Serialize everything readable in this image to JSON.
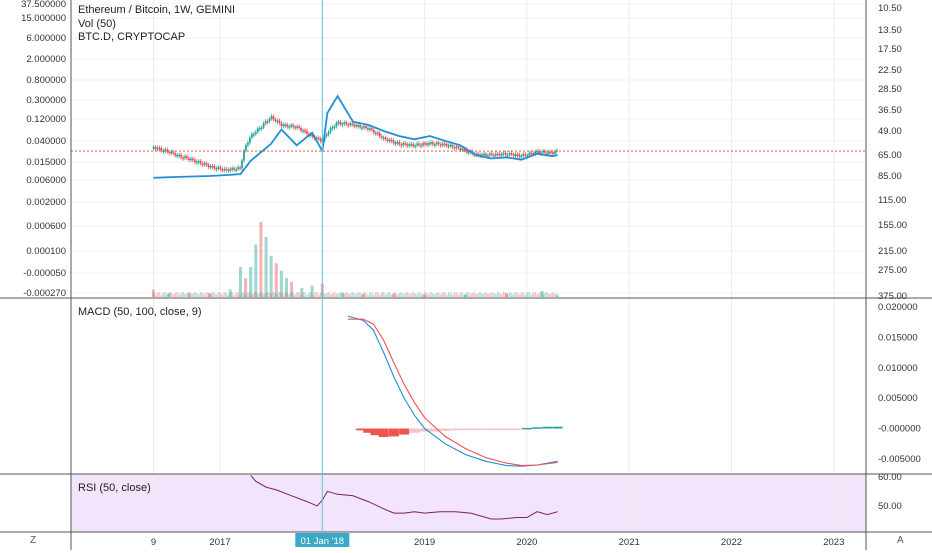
{
  "colors": {
    "accent": "#1f8fd6",
    "up": "#26a69a",
    "down": "#ef5350",
    "rsi_band": "#f1e4fb",
    "rsi_line": "#7b1f6a",
    "crosshair": "#61c7d9",
    "price_line": "#e53935",
    "date_badge": "#3aa9c6"
  },
  "legend": {
    "symbol": "Ethereum / Bitcoin, 1W, GEMINI",
    "volume": "Vol (50)",
    "overlay": "BTC.D, CRYPTOCAP"
  },
  "crosshair_date": "01 Jan '18",
  "left_corner": "Z",
  "right_corner": "A",
  "chart_data": [
    {
      "type": "line",
      "name": "price",
      "title": "Ethereum / Bitcoin, 1W, GEMINI",
      "x_ticks": [
        "9",
        "2017",
        "2018",
        "2019",
        "2020",
        "2021",
        "2022",
        "2023"
      ],
      "left_axis_ticks": [
        "37.500000",
        "15.000000",
        "6.000000",
        "2.000000",
        "0.800000",
        "0.300000",
        "0.120000",
        "0.040000",
        "0.015000",
        "0.006000",
        "0.002000",
        "0.000600",
        "0.000100",
        "-0.000050",
        "-0.000270"
      ],
      "right_axis_ticks": [
        "10.50",
        "13.50",
        "17.50",
        "22.50",
        "28.50",
        "36.50",
        "49.00",
        "65.00",
        "85.00",
        "115.00",
        "155.00",
        "215.00",
        "275.00",
        "375.00"
      ],
      "series": [
        {
          "name": "Ethereum / Bitcoin",
          "x": [
            2016.35,
            2016.6,
            2016.9,
            2017.05,
            2017.2,
            2017.3,
            2017.4,
            2017.5,
            2017.6,
            2017.75,
            2017.9,
            2018.0,
            2018.15,
            2018.3,
            2018.45,
            2018.6,
            2018.75,
            2018.9,
            2019.05,
            2019.2,
            2019.35,
            2019.5,
            2019.65,
            2019.8,
            2019.95,
            2020.1,
            2020.25,
            2020.3
          ],
          "values": [
            0.03,
            0.02,
            0.012,
            0.01,
            0.011,
            0.05,
            0.08,
            0.13,
            0.09,
            0.08,
            0.05,
            0.04,
            0.1,
            0.09,
            0.075,
            0.045,
            0.035,
            0.033,
            0.036,
            0.034,
            0.028,
            0.021,
            0.021,
            0.022,
            0.02,
            0.024,
            0.023,
            0.025
          ]
        },
        {
          "name": "BTC.D, CRYPTOCAP",
          "x": [
            2016.35,
            2016.6,
            2016.9,
            2017.05,
            2017.2,
            2017.3,
            2017.4,
            2017.5,
            2017.6,
            2017.75,
            2017.9,
            2018.0,
            2018.05,
            2018.15,
            2018.3,
            2018.45,
            2018.6,
            2018.75,
            2018.9,
            2019.05,
            2019.2,
            2019.35,
            2019.5,
            2019.65,
            2019.8,
            2019.95,
            2020.1,
            2020.25,
            2020.3
          ],
          "values": [
            87,
            86,
            85,
            84,
            83,
            70,
            63,
            57,
            48,
            58,
            50,
            62,
            38,
            31,
            43,
            45,
            49,
            52,
            54,
            52,
            55,
            58,
            65,
            68,
            67,
            69,
            64,
            66,
            65
          ],
          "axis": "right"
        }
      ]
    },
    {
      "type": "bar",
      "name": "volume",
      "title": "Vol (50)",
      "x": [
        2016.35,
        2016.5,
        2016.7,
        2016.9,
        2017.1,
        2017.2,
        2017.25,
        2017.3,
        2017.35,
        2017.4,
        2017.45,
        2017.5,
        2017.55,
        2017.6,
        2017.65,
        2017.7,
        2017.8,
        2017.9,
        2018.0,
        2018.2,
        2018.4,
        2018.7,
        2019.0,
        2019.4,
        2019.8,
        2020.15,
        2020.3
      ],
      "values": [
        0.1,
        0.05,
        0.05,
        0.05,
        0.1,
        0.4,
        0.25,
        0.4,
        0.7,
        1.0,
        0.8,
        0.55,
        0.45,
        0.35,
        0.25,
        0.2,
        0.12,
        0.15,
        0.18,
        0.06,
        0.04,
        0.04,
        0.03,
        0.03,
        0.05,
        0.08,
        0.02
      ]
    },
    {
      "type": "line",
      "name": "macd",
      "title": "MACD (50, 100, close, 9)",
      "right_axis_ticks": [
        "0.020000",
        "0.015000",
        "0.010000",
        "0.005000",
        "-0.000000",
        "-0.005000"
      ],
      "ylim": [
        -0.0065,
        0.0205
      ],
      "x": [
        2018.25,
        2018.4,
        2018.5,
        2018.6,
        2018.7,
        2018.8,
        2018.9,
        2019.0,
        2019.2,
        2019.4,
        2019.6,
        2019.8,
        2019.95,
        2020.1,
        2020.3
      ],
      "series": [
        {
          "name": "MACD",
          "values": [
            0.0185,
            0.0178,
            0.0162,
            0.0125,
            0.0085,
            0.005,
            0.0022,
            0.0,
            -0.0025,
            -0.0043,
            -0.0054,
            -0.0061,
            -0.0062,
            -0.006,
            -0.0054
          ]
        },
        {
          "name": "Signal",
          "values": [
            0.018,
            0.018,
            0.0172,
            0.0145,
            0.0108,
            0.0073,
            0.0043,
            0.0018,
            -0.0013,
            -0.0033,
            -0.0048,
            -0.0057,
            -0.0061,
            -0.006,
            -0.0056
          ]
        }
      ],
      "histogram": {
        "x": [
          2018.38,
          2018.45,
          2018.52,
          2018.6,
          2018.7,
          2018.8,
          2018.9,
          2019.0,
          2019.1,
          2019.2,
          2019.3,
          2019.4,
          2019.5,
          2019.6,
          2019.7,
          2019.8,
          2019.9,
          2020.0,
          2020.1,
          2020.2,
          2020.3
        ],
        "values": [
          -0.0003,
          -0.0007,
          -0.0011,
          -0.0014,
          -0.0013,
          -0.001,
          -0.0007,
          -0.0005,
          -0.0005,
          -0.0004,
          -0.0003,
          -0.0002,
          -0.00015,
          -0.0001,
          -6e-05,
          -4e-05,
          -2e-05,
          0.0001,
          0.0002,
          0.0003,
          0.0003
        ]
      }
    },
    {
      "type": "line",
      "name": "rsi",
      "title": "RSI (50, close)",
      "right_axis_ticks": [
        "60.00",
        "50.00"
      ],
      "ylim": [
        41,
        61
      ],
      "x": [
        2017.3,
        2017.35,
        2017.45,
        2017.55,
        2017.7,
        2017.85,
        2017.95,
        2018.0,
        2018.05,
        2018.15,
        2018.3,
        2018.45,
        2018.6,
        2018.7,
        2018.8,
        2018.9,
        2019.0,
        2019.15,
        2019.3,
        2019.45,
        2019.55,
        2019.65,
        2019.75,
        2019.9,
        2020.0,
        2020.1,
        2020.2,
        2020.3
      ],
      "values": [
        60.5,
        58.5,
        56.5,
        55.5,
        53.5,
        51.5,
        50,
        52,
        55,
        54,
        53.5,
        51.5,
        49,
        47.5,
        47.5,
        48,
        47.5,
        48,
        48,
        47.5,
        46.5,
        45.5,
        45.5,
        46,
        46,
        48,
        47,
        48
      ]
    }
  ]
}
